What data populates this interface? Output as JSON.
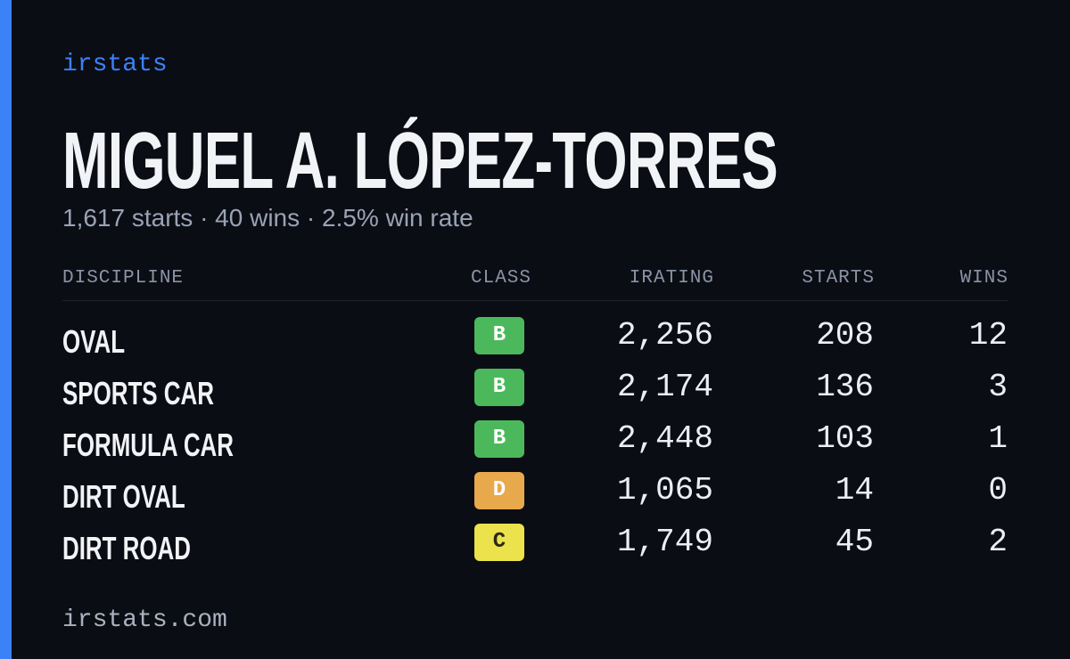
{
  "header": {
    "brand": "irstats"
  },
  "driver": {
    "name": "MIGUEL A. LÓPEZ-TORRES",
    "summary": "1,617 starts · 40 wins · 2.5% win rate"
  },
  "table": {
    "columns": [
      "DISCIPLINE",
      "CLASS",
      "IRATING",
      "STARTS",
      "WINS"
    ],
    "rows": [
      {
        "discipline": "OVAL",
        "class": "B",
        "class_color": "#4cb85c",
        "irating": "2,256",
        "starts": "208",
        "wins": "12"
      },
      {
        "discipline": "SPORTS CAR",
        "class": "B",
        "class_color": "#4cb85c",
        "irating": "2,174",
        "starts": "136",
        "wins": "3"
      },
      {
        "discipline": "FORMULA CAR",
        "class": "B",
        "class_color": "#4cb85c",
        "irating": "2,448",
        "starts": "103",
        "wins": "1"
      },
      {
        "discipline": "DIRT OVAL",
        "class": "D",
        "class_color": "#e8a94c",
        "irating": "1,065",
        "starts": "14",
        "wins": "0"
      },
      {
        "discipline": "DIRT ROAD",
        "class": "C",
        "class_color": "#ece24c",
        "irating": "1,749",
        "starts": "45",
        "wins": "2"
      }
    ]
  },
  "footer": {
    "url": "irstats.com"
  }
}
